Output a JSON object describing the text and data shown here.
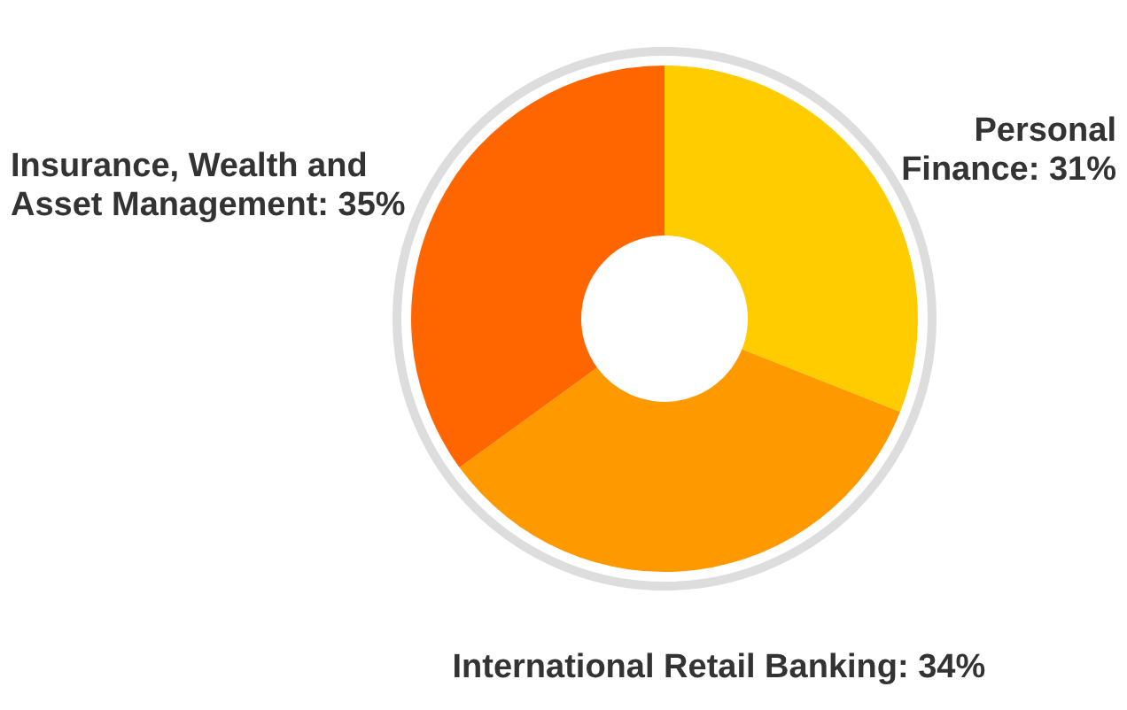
{
  "chart_data": {
    "type": "donut",
    "categories": [
      "Personal Finance",
      "International Retail Banking",
      "Insurance, Wealth and Asset Management"
    ],
    "values": [
      31,
      34,
      35
    ],
    "value_labels": [
      "31%",
      "34%",
      "35%"
    ],
    "colors": [
      "#ffcc00",
      "#ff9900",
      "#ff6600"
    ]
  }
}
